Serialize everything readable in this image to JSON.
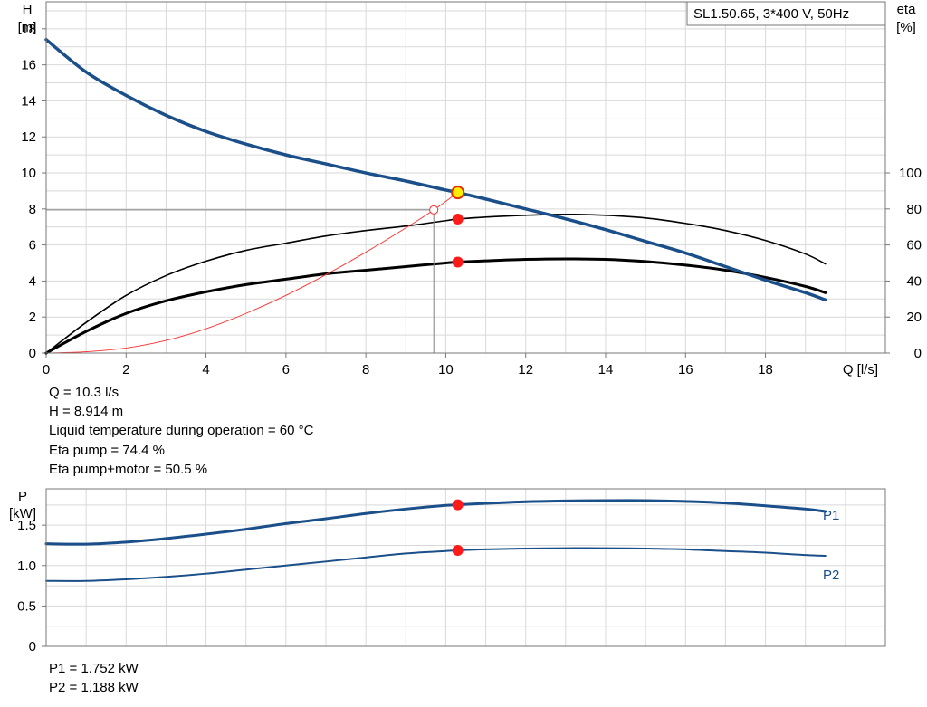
{
  "colors": {
    "H": "#1a4f8a",
    "eta": "#000000",
    "npsh": "#ff3030",
    "power": "#1a4f8a",
    "grid": "#d9d9d9",
    "duty_point": "#ff1a1a",
    "duty_highlight": "#ffee00"
  },
  "chart_data": [
    {
      "type": "line",
      "title": "SL1.50.65, 3*400 V, 50Hz",
      "xlabel": "Q [l/s]",
      "ylabel": [
        "H",
        "[m]"
      ],
      "y2label": [
        "eta",
        "[%]"
      ],
      "xlim": [
        0,
        21
      ],
      "ylim": [
        0,
        19.5
      ],
      "y2lim": [
        0,
        100
      ],
      "x_ticks": [
        0,
        2,
        4,
        6,
        8,
        10,
        12,
        14,
        16,
        18
      ],
      "y_ticks": [
        0,
        2,
        4,
        6,
        8,
        10,
        12,
        14,
        16,
        18
      ],
      "y2_ticks": [
        0,
        20,
        40,
        60,
        80,
        100
      ],
      "grid": true,
      "series": [
        {
          "key": "H",
          "axis": "left",
          "x": [
            0,
            1,
            2,
            3,
            4,
            5,
            6,
            7,
            8,
            9,
            10,
            10.3,
            11,
            12,
            13,
            14,
            15,
            16,
            17,
            18,
            19,
            19.5
          ],
          "y": [
            17.4,
            15.6,
            14.3,
            13.2,
            12.3,
            11.6,
            11.0,
            10.5,
            10.0,
            9.55,
            9.05,
            8.914,
            8.55,
            8.0,
            7.45,
            6.85,
            6.2,
            5.55,
            4.8,
            4.05,
            3.35,
            2.95
          ]
        },
        {
          "key": "eta_pump",
          "axis": "right",
          "x": [
            0,
            1,
            2,
            3,
            4,
            5,
            6,
            7,
            8,
            9,
            10,
            10.3,
            11,
            12,
            13,
            14,
            15,
            16,
            17,
            18,
            19,
            19.5
          ],
          "y": [
            0,
            17,
            32,
            43,
            51,
            57,
            61,
            65,
            68,
            70.5,
            73.5,
            74.4,
            75.5,
            76.5,
            77,
            76.5,
            75,
            72,
            68,
            62.5,
            55,
            49.5
          ]
        },
        {
          "key": "eta_total",
          "axis": "right",
          "x": [
            0,
            1,
            2,
            3,
            4,
            5,
            6,
            7,
            8,
            9,
            10,
            10.3,
            11,
            12,
            13,
            14,
            15,
            16,
            17,
            18,
            19,
            19.5
          ],
          "y": [
            0,
            12,
            22,
            29,
            34,
            38,
            41,
            44,
            46,
            48,
            50,
            50.5,
            51.2,
            52,
            52.3,
            52,
            50.8,
            48.8,
            46,
            42,
            37,
            33.5
          ]
        },
        {
          "key": "npsh",
          "axis": "left",
          "x": [
            0,
            1,
            2,
            3,
            4,
            5,
            6,
            7,
            8,
            9,
            9.7,
            10.3
          ],
          "y": [
            0,
            0.07,
            0.28,
            0.7,
            1.35,
            2.2,
            3.2,
            4.35,
            5.6,
            6.95,
            7.95,
            8.914
          ]
        }
      ],
      "duty_points": [
        {
          "series": "H",
          "x": 10.3,
          "y": 8.914,
          "style": "highlight"
        },
        {
          "series": "eta_pump",
          "x": 10.3,
          "y": 74.4,
          "style": "normal"
        },
        {
          "series": "eta_total",
          "x": 10.3,
          "y": 50.5,
          "style": "normal"
        },
        {
          "series": "npsh",
          "x": 9.7,
          "y": 7.95,
          "style": "hollow"
        }
      ],
      "reference_line": {
        "x": 9.7,
        "y": 7.95
      }
    },
    {
      "type": "line",
      "xlim": [
        0,
        21
      ],
      "ylim": [
        0,
        1.95
      ],
      "y_ticks": [
        0,
        0.5,
        1.0,
        1.5
      ],
      "y_tick_labels": [
        "0",
        "0.5",
        "1.0",
        "1.5"
      ],
      "ylabel": [
        "P",
        "[kW]"
      ],
      "grid": true,
      "series": [
        {
          "key": "P1",
          "name": "P1",
          "x": [
            0,
            1,
            2,
            3,
            4,
            5,
            6,
            7,
            8,
            9,
            10,
            10.3,
            11,
            12,
            13,
            14,
            15,
            16,
            17,
            18,
            19,
            19.5
          ],
          "y": [
            1.27,
            1.265,
            1.29,
            1.335,
            1.39,
            1.45,
            1.52,
            1.58,
            1.645,
            1.7,
            1.745,
            1.752,
            1.77,
            1.79,
            1.8,
            1.805,
            1.805,
            1.795,
            1.775,
            1.74,
            1.7,
            1.67
          ]
        },
        {
          "key": "P2",
          "name": "P2",
          "x": [
            0,
            1,
            2,
            3,
            4,
            5,
            6,
            7,
            8,
            9,
            10,
            10.3,
            11,
            12,
            13,
            14,
            15,
            16,
            17,
            18,
            19,
            19.5
          ],
          "y": [
            0.81,
            0.81,
            0.83,
            0.86,
            0.9,
            0.95,
            1.0,
            1.05,
            1.1,
            1.15,
            1.18,
            1.188,
            1.2,
            1.21,
            1.215,
            1.215,
            1.21,
            1.2,
            1.18,
            1.16,
            1.13,
            1.12
          ]
        }
      ],
      "duty_points": [
        {
          "series": "P1",
          "x": 10.3,
          "y": 1.752
        },
        {
          "series": "P2",
          "x": 10.3,
          "y": 1.188
        }
      ]
    }
  ],
  "operating_point": {
    "lines": [
      "Q = 10.3 l/s",
      "H = 8.914 m",
      "Liquid temperature during operation = 60 °C",
      "Eta pump = 74.4 %",
      "Eta pump+motor = 50.5 %"
    ]
  },
  "power_values": {
    "lines": [
      "P1 = 1.752 kW",
      "P2 = 1.188 kW"
    ]
  }
}
